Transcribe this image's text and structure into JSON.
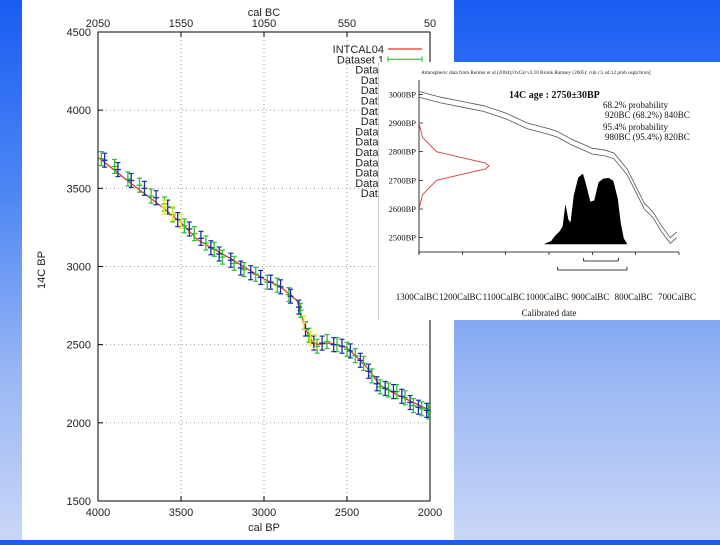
{
  "chart_data": [
    {
      "type": "scatter",
      "xlabel": "cal BP",
      "ylabel": "14C BP",
      "x2label": "cal BC",
      "xlim": [
        4000,
        2000
      ],
      "ylim": [
        1500,
        4500
      ],
      "x_ticks": [
        "4000",
        "3500",
        "3000",
        "2500",
        "2000"
      ],
      "y_ticks": [
        "1500",
        "2000",
        "2500",
        "3000",
        "3500",
        "4000",
        "4500"
      ],
      "x2_ticks": [
        "2050",
        "1550",
        "1050",
        "550",
        "50"
      ],
      "grid": true,
      "legend_position": "top-right",
      "legend": [
        "INTCAL04",
        "Dataset 1",
        "Datas",
        "Data",
        "Data",
        "Data",
        "Data",
        "Data",
        "Datas",
        "Datas",
        "Datas",
        "Datas",
        "Datas",
        "Datas",
        "Data"
      ],
      "series": [
        {
          "name": "INTCAL04",
          "color": "#e03020",
          "points": [
            [
              4000,
              3700
            ],
            [
              3800,
              3530
            ],
            [
              3600,
              3370
            ],
            [
              3500,
              3280
            ],
            [
              3400,
              3170
            ],
            [
              3200,
              3050
            ],
            [
              3000,
              2920
            ],
            [
              2900,
              2870
            ],
            [
              2800,
              2780
            ],
            [
              2750,
              2600
            ],
            [
              2700,
              2500
            ],
            [
              2600,
              2510
            ],
            [
              2500,
              2480
            ],
            [
              2400,
              2380
            ],
            [
              2300,
              2240
            ],
            [
              2200,
              2180
            ],
            [
              2000,
              2080
            ]
          ]
        },
        {
          "name": "Dataset 1",
          "color": "#2ec02e",
          "points": [
            [
              3980,
              3690
            ],
            [
              3900,
              3640
            ],
            [
              3820,
              3560
            ],
            [
              3750,
              3520
            ],
            [
              3680,
              3450
            ],
            [
              3600,
              3400
            ],
            [
              3550,
              3330
            ],
            [
              3480,
              3260
            ],
            [
              3420,
              3210
            ],
            [
              3350,
              3150
            ],
            [
              3300,
              3110
            ],
            [
              3250,
              3060
            ],
            [
              3180,
              3020
            ],
            [
              3120,
              2980
            ],
            [
              3050,
              2950
            ],
            [
              2980,
              2900
            ],
            [
              2920,
              2880
            ],
            [
              2850,
              2820
            ],
            [
              2780,
              2720
            ],
            [
              2730,
              2560
            ],
            [
              2680,
              2490
            ],
            [
              2620,
              2520
            ],
            [
              2560,
              2500
            ],
            [
              2500,
              2470
            ],
            [
              2450,
              2430
            ],
            [
              2400,
              2380
            ],
            [
              2350,
              2300
            ],
            [
              2300,
              2230
            ],
            [
              2250,
              2210
            ],
            [
              2200,
              2200
            ],
            [
              2150,
              2160
            ],
            [
              2100,
              2110
            ],
            [
              2050,
              2090
            ],
            [
              2010,
              2070
            ]
          ]
        },
        {
          "name": "Data",
          "color": "#1a2fa0",
          "points": [
            [
              3960,
              3680
            ],
            [
              3880,
              3620
            ],
            [
              3800,
              3550
            ],
            [
              3720,
              3500
            ],
            [
              3650,
              3440
            ],
            [
              3580,
              3380
            ],
            [
              3520,
              3300
            ],
            [
              3450,
              3240
            ],
            [
              3380,
              3180
            ],
            [
              3320,
              3120
            ],
            [
              3270,
              3080
            ],
            [
              3200,
              3040
            ],
            [
              3140,
              2990
            ],
            [
              3080,
              2960
            ],
            [
              3020,
              2930
            ],
            [
              2960,
              2900
            ],
            [
              2900,
              2870
            ],
            [
              2840,
              2810
            ],
            [
              2790,
              2740
            ],
            [
              2750,
              2600
            ],
            [
              2700,
              2510
            ],
            [
              2650,
              2510
            ],
            [
              2580,
              2500
            ],
            [
              2530,
              2490
            ],
            [
              2480,
              2460
            ],
            [
              2420,
              2400
            ],
            [
              2370,
              2330
            ],
            [
              2320,
              2250
            ],
            [
              2270,
              2220
            ],
            [
              2220,
              2200
            ],
            [
              2170,
              2170
            ],
            [
              2120,
              2130
            ],
            [
              2070,
              2100
            ],
            [
              2020,
              2080
            ]
          ]
        },
        {
          "name": "Data",
          "color": "#e8e82a",
          "points": [
            [
              3600,
              3380
            ],
            [
              3550,
              3340
            ],
            [
              3500,
              3290
            ],
            [
              2760,
              2640
            ],
            [
              2720,
              2540
            ],
            [
              2690,
              2520
            ]
          ]
        }
      ]
    },
    {
      "type": "area",
      "header": "Atmospheric data from Reimer et al (2004);OxCal v3.10 Bronk Ramsey (2005); cub r:5 sd:12 prob usp[chron]",
      "annotation": "14C age : 2750±30BP",
      "probability_lines": [
        "68.2% probability",
        "920BC (68.2%) 840BC",
        "95.4% probability",
        "980BC (95.4%) 820BC"
      ],
      "xlabel": "Calibrated date",
      "x_ticks": [
        "1300CalBC",
        "1200CalBC",
        "1100CalBC",
        "1000CalBC",
        "900CalBC",
        "800CalBC",
        "700CalBC"
      ],
      "y_ticks": [
        "3000BP",
        "2900BP",
        "2800BP",
        "2700BP",
        "2600BP",
        "2500BP"
      ],
      "xlim": [
        1300,
        700
      ],
      "ylim": [
        2450,
        3050
      ],
      "calibration_upper": [
        [
          1300,
          3010
        ],
        [
          1250,
          2990
        ],
        [
          1200,
          2975
        ],
        [
          1150,
          2960
        ],
        [
          1100,
          2935
        ],
        [
          1050,
          2900
        ],
        [
          1000,
          2880
        ],
        [
          980,
          2870
        ],
        [
          950,
          2845
        ],
        [
          920,
          2825
        ],
        [
          900,
          2812
        ],
        [
          870,
          2805
        ],
        [
          850,
          2795
        ],
        [
          820,
          2740
        ],
        [
          800,
          2680
        ],
        [
          780,
          2620
        ],
        [
          760,
          2590
        ],
        [
          740,
          2540
        ],
        [
          720,
          2500
        ],
        [
          705,
          2520
        ]
      ],
      "calibration_lower": [
        [
          1300,
          2990
        ],
        [
          1250,
          2970
        ],
        [
          1200,
          2955
        ],
        [
          1150,
          2940
        ],
        [
          1100,
          2915
        ],
        [
          1050,
          2880
        ],
        [
          1000,
          2860
        ],
        [
          980,
          2850
        ],
        [
          950,
          2825
        ],
        [
          920,
          2805
        ],
        [
          900,
          2792
        ],
        [
          870,
          2785
        ],
        [
          850,
          2775
        ],
        [
          820,
          2720
        ],
        [
          800,
          2660
        ],
        [
          780,
          2600
        ],
        [
          760,
          2570
        ],
        [
          740,
          2520
        ],
        [
          720,
          2480
        ],
        [
          705,
          2500
        ]
      ],
      "radiocarbon_curve": [
        [
          2600,
          0
        ],
        [
          2650,
          0.05
        ],
        [
          2700,
          0.25
        ],
        [
          2720,
          0.6
        ],
        [
          2740,
          0.95
        ],
        [
          2750,
          1.0
        ],
        [
          2760,
          0.95
        ],
        [
          2780,
          0.6
        ],
        [
          2800,
          0.25
        ],
        [
          2850,
          0.05
        ],
        [
          2900,
          0
        ]
      ],
      "posterior": [
        [
          1010,
          0
        ],
        [
          995,
          0.04
        ],
        [
          985,
          0.12
        ],
        [
          975,
          0.18
        ],
        [
          968,
          0.25
        ],
        [
          962,
          0.55
        ],
        [
          956,
          0.35
        ],
        [
          950,
          0.3
        ],
        [
          942,
          0.7
        ],
        [
          932,
          0.95
        ],
        [
          922,
          1.0
        ],
        [
          915,
          0.85
        ],
        [
          905,
          0.6
        ],
        [
          895,
          0.62
        ],
        [
          885,
          0.88
        ],
        [
          875,
          0.93
        ],
        [
          862,
          0.94
        ],
        [
          852,
          0.9
        ],
        [
          842,
          0.65
        ],
        [
          835,
          0.3
        ],
        [
          828,
          0.08
        ],
        [
          820,
          0
        ]
      ],
      "range_68": [
        920,
        840
      ],
      "range_95": [
        980,
        820
      ]
    }
  ]
}
